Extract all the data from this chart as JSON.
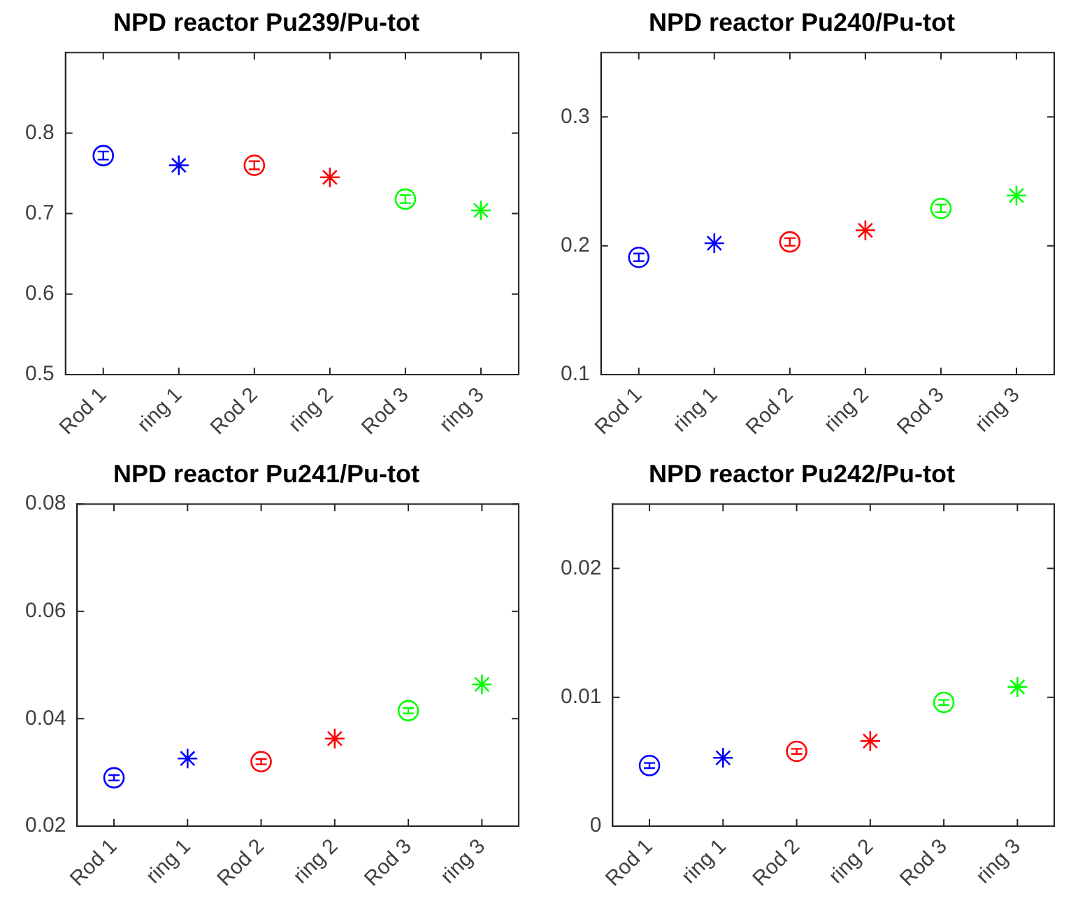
{
  "chart_data": [
    {
      "type": "scatter",
      "title": "NPD reactor Pu239/Pu-tot",
      "categories": [
        "Rod 1",
        "ring 1",
        "Rod 2",
        "ring 2",
        "Rod 3",
        "ring 3"
      ],
      "ylim": [
        0.5,
        0.9
      ],
      "yticks": [
        0.5,
        0.6,
        0.7,
        0.8
      ],
      "grid": false,
      "legend": false,
      "series": [
        {
          "marker": "circle",
          "colors": [
            "#0000ff",
            null,
            "#ff0000",
            null,
            "#00ff00",
            null
          ],
          "values": [
            0.772,
            null,
            0.76,
            null,
            0.718,
            null
          ],
          "errors": [
            0.005,
            null,
            0.005,
            null,
            0.005,
            null
          ]
        },
        {
          "marker": "cross",
          "colors": [
            null,
            "#0000ff",
            null,
            "#ff0000",
            null,
            "#00ff00"
          ],
          "values": [
            null,
            0.76,
            null,
            0.745,
            null,
            0.704
          ]
        }
      ]
    },
    {
      "type": "scatter",
      "title": "NPD reactor Pu240/Pu-tot",
      "categories": [
        "Rod 1",
        "ring 1",
        "Rod 2",
        "ring 2",
        "Rod 3",
        "ring 3"
      ],
      "ylim": [
        0.1,
        0.35
      ],
      "yticks": [
        0.1,
        0.2,
        0.3
      ],
      "grid": false,
      "legend": false,
      "series": [
        {
          "marker": "circle",
          "colors": [
            "#0000ff",
            null,
            "#ff0000",
            null,
            "#00ff00",
            null
          ],
          "values": [
            0.191,
            null,
            0.203,
            null,
            0.229,
            null
          ],
          "errors": [
            0.003,
            null,
            0.003,
            null,
            0.003,
            null
          ]
        },
        {
          "marker": "cross",
          "colors": [
            null,
            "#0000ff",
            null,
            "#ff0000",
            null,
            "#00ff00"
          ],
          "values": [
            null,
            0.202,
            null,
            0.212,
            null,
            0.239
          ]
        }
      ]
    },
    {
      "type": "scatter",
      "title": "NPD reactor Pu241/Pu-tot",
      "categories": [
        "Rod 1",
        "ring 1",
        "Rod 2",
        "ring 2",
        "Rod 3",
        "ring 3"
      ],
      "ylim": [
        0.02,
        0.08
      ],
      "yticks": [
        0.02,
        0.04,
        0.06,
        0.08
      ],
      "grid": false,
      "legend": false,
      "series": [
        {
          "marker": "circle",
          "colors": [
            "#0000ff",
            null,
            "#ff0000",
            null,
            "#00ff00",
            null
          ],
          "values": [
            0.029,
            null,
            0.032,
            null,
            0.0415,
            null
          ],
          "errors": [
            0.0005,
            null,
            0.0005,
            null,
            0.0005,
            null
          ]
        },
        {
          "marker": "cross",
          "colors": [
            null,
            "#0000ff",
            null,
            "#ff0000",
            null,
            "#00ff00"
          ],
          "values": [
            null,
            0.0326,
            null,
            0.0363,
            null,
            0.0464
          ]
        }
      ]
    },
    {
      "type": "scatter",
      "title": "NPD reactor Pu242/Pu-tot",
      "categories": [
        "Rod 1",
        "ring 1",
        "Rod 2",
        "ring 2",
        "Rod 3",
        "ring 3"
      ],
      "ylim": [
        0,
        0.025
      ],
      "yticks": [
        0,
        0.01,
        0.02
      ],
      "grid": false,
      "legend": false,
      "series": [
        {
          "marker": "circle",
          "colors": [
            "#0000ff",
            null,
            "#ff0000",
            null,
            "#00ff00",
            null
          ],
          "values": [
            0.0047,
            null,
            0.0058,
            null,
            0.0096,
            null
          ],
          "errors": [
            0.0002,
            null,
            0.0002,
            null,
            0.0002,
            null
          ]
        },
        {
          "marker": "cross",
          "colors": [
            null,
            "#0000ff",
            null,
            "#ff0000",
            null,
            "#00ff00"
          ],
          "values": [
            null,
            0.0053,
            null,
            0.0066,
            null,
            0.0108
          ]
        }
      ]
    }
  ]
}
